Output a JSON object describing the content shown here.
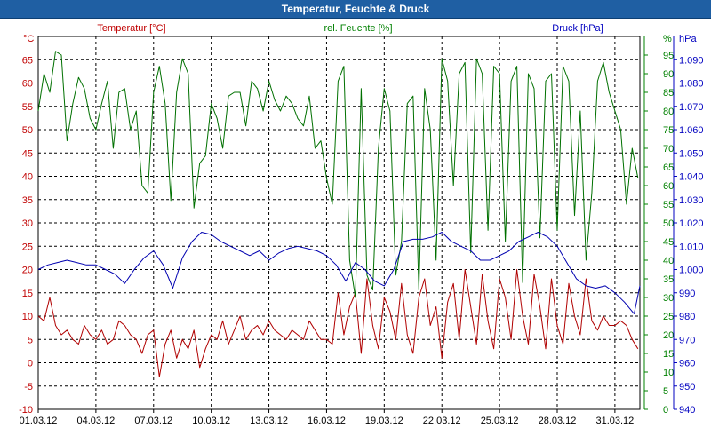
{
  "window": {
    "title": "Temperatur, Feuchte & Druck"
  },
  "chart_data": {
    "type": "line",
    "title": "Temperatur, Feuchte & Druck",
    "x": {
      "tick_labels": [
        "01.03.12",
        "04.03.12",
        "07.03.12",
        "10.03.12",
        "13.03.12",
        "16.03.12",
        "19.03.12",
        "22.03.12",
        "25.03.12",
        "28.03.12",
        "31.03.12"
      ],
      "tick_days": [
        0,
        3,
        6,
        9,
        12,
        15,
        18,
        21,
        24,
        27,
        30
      ],
      "range": [
        0,
        31.3
      ],
      "unit": "days"
    },
    "axes": {
      "temperature": {
        "label": "°C",
        "range": [
          -10,
          70
        ],
        "ticks": [
          -10,
          -5,
          0,
          5,
          10,
          15,
          20,
          25,
          30,
          35,
          40,
          45,
          50,
          55,
          60,
          65
        ],
        "color": "#c00000"
      },
      "humidity": {
        "label": "%",
        "range": [
          0,
          100
        ],
        "ticks": [
          0,
          5,
          10,
          15,
          20,
          25,
          30,
          35,
          40,
          45,
          50,
          55,
          60,
          65,
          70,
          75,
          80,
          85,
          90,
          95
        ],
        "color": "#008000"
      },
      "pressure": {
        "label": "hPa",
        "range": [
          940,
          1100
        ],
        "ticks": [
          "940",
          "950",
          "960",
          "970",
          "980",
          "990",
          "1.000",
          "1.010",
          "1.020",
          "1.030",
          "1.040",
          "1.050",
          "1.060",
          "1.070",
          "1.080",
          "1.090"
        ],
        "tick_values": [
          940,
          950,
          960,
          970,
          980,
          990,
          1000,
          1010,
          1020,
          1030,
          1040,
          1050,
          1060,
          1070,
          1080,
          1090
        ],
        "color": "#0000c0"
      }
    },
    "grid": true,
    "legend_placement": "top",
    "series": [
      {
        "name": "Temperatur [°C]",
        "axis": "temperature",
        "color": "#b00000",
        "x": [
          0,
          0.3,
          0.6,
          0.9,
          1.2,
          1.5,
          1.8,
          2.1,
          2.4,
          2.7,
          3.0,
          3.3,
          3.6,
          3.9,
          4.2,
          4.5,
          4.8,
          5.1,
          5.4,
          5.7,
          6.0,
          6.3,
          6.6,
          6.9,
          7.2,
          7.5,
          7.8,
          8.1,
          8.4,
          8.7,
          9.0,
          9.3,
          9.6,
          9.9,
          10.2,
          10.5,
          10.8,
          11.1,
          11.4,
          11.7,
          12.0,
          12.3,
          12.6,
          12.9,
          13.2,
          13.5,
          13.8,
          14.1,
          14.4,
          14.7,
          15.0,
          15.3,
          15.6,
          15.9,
          16.2,
          16.5,
          16.8,
          17.1,
          17.4,
          17.7,
          18.0,
          18.3,
          18.6,
          18.9,
          19.2,
          19.5,
          19.8,
          20.1,
          20.4,
          20.7,
          21.0,
          21.3,
          21.6,
          21.9,
          22.2,
          22.5,
          22.8,
          23.1,
          23.4,
          23.7,
          24.0,
          24.3,
          24.6,
          24.9,
          25.2,
          25.5,
          25.8,
          26.1,
          26.4,
          26.7,
          27.0,
          27.3,
          27.6,
          27.9,
          28.2,
          28.5,
          28.8,
          29.1,
          29.4,
          29.7,
          30.0,
          30.3,
          30.6,
          30.9,
          31.2
        ],
        "values": [
          10,
          9,
          14,
          8,
          6,
          7,
          5,
          4,
          8,
          6,
          5,
          7,
          4,
          5,
          9,
          8,
          6,
          5,
          2,
          6,
          7,
          -3,
          4,
          7,
          1,
          5,
          3,
          7,
          -1,
          3,
          6,
          5,
          9,
          4,
          7,
          10,
          5,
          7,
          8,
          6,
          9,
          7,
          6,
          5,
          7,
          6,
          5,
          9,
          7,
          5,
          5,
          4,
          15,
          6,
          12,
          15,
          2,
          18,
          8,
          3,
          14,
          11,
          5,
          17,
          6,
          2,
          14,
          18,
          8,
          12,
          1,
          13,
          17,
          5,
          20,
          12,
          4,
          19,
          9,
          3,
          18,
          14,
          5,
          20,
          10,
          4,
          19,
          12,
          3,
          18,
          8,
          4,
          17,
          10,
          6,
          18,
          9,
          7,
          10,
          8,
          8,
          9,
          8,
          5,
          3
        ]
      },
      {
        "name": "rel. Feuchte [%]",
        "axis": "humidity",
        "color": "#007000",
        "x": [
          0,
          0.3,
          0.6,
          0.9,
          1.2,
          1.5,
          1.8,
          2.1,
          2.4,
          2.7,
          3.0,
          3.3,
          3.6,
          3.9,
          4.2,
          4.5,
          4.8,
          5.1,
          5.4,
          5.7,
          6.0,
          6.3,
          6.6,
          6.9,
          7.2,
          7.5,
          7.8,
          8.1,
          8.4,
          8.7,
          9.0,
          9.3,
          9.6,
          9.9,
          10.2,
          10.5,
          10.8,
          11.1,
          11.4,
          11.7,
          12.0,
          12.3,
          12.6,
          12.9,
          13.2,
          13.5,
          13.8,
          14.1,
          14.4,
          14.7,
          15.0,
          15.3,
          15.6,
          15.9,
          16.2,
          16.5,
          16.8,
          17.1,
          17.4,
          17.7,
          18.0,
          18.3,
          18.6,
          18.9,
          19.2,
          19.5,
          19.8,
          20.1,
          20.4,
          20.7,
          21.0,
          21.3,
          21.6,
          21.9,
          22.2,
          22.5,
          22.8,
          23.1,
          23.4,
          23.7,
          24.0,
          24.3,
          24.6,
          24.9,
          25.2,
          25.5,
          25.8,
          26.1,
          26.4,
          26.7,
          27.0,
          27.3,
          27.6,
          27.9,
          28.2,
          28.5,
          28.8,
          29.1,
          29.4,
          29.7,
          30.0,
          30.3,
          30.6,
          30.9,
          31.2
        ],
        "values": [
          80,
          90,
          85,
          96,
          95,
          72,
          82,
          89,
          86,
          78,
          75,
          82,
          88,
          70,
          85,
          86,
          75,
          80,
          60,
          58,
          85,
          92,
          82,
          56,
          85,
          94,
          90,
          54,
          66,
          68,
          82,
          78,
          70,
          84,
          85,
          85,
          76,
          88,
          86,
          80,
          88,
          83,
          80,
          84,
          82,
          78,
          76,
          84,
          70,
          72,
          62,
          55,
          88,
          92,
          40,
          30,
          86,
          36,
          32,
          70,
          86,
          80,
          36,
          45,
          82,
          84,
          32,
          86,
          75,
          40,
          94,
          88,
          60,
          90,
          93,
          42,
          94,
          90,
          48,
          92,
          90,
          45,
          88,
          92,
          34,
          90,
          86,
          46,
          88,
          90,
          48,
          92,
          88,
          52,
          80,
          40,
          58,
          88,
          93,
          85,
          80,
          75,
          55,
          70,
          62
        ]
      },
      {
        "name": "Druck [hPa]",
        "axis": "pressure",
        "color": "#0000b0",
        "x": [
          0,
          0.5,
          1.0,
          1.5,
          2.0,
          2.5,
          3.0,
          3.5,
          4.0,
          4.5,
          5.0,
          5.5,
          6.0,
          6.5,
          7.0,
          7.5,
          8.0,
          8.5,
          9.0,
          9.5,
          10.0,
          10.5,
          11.0,
          11.5,
          12.0,
          12.5,
          13.0,
          13.5,
          14.0,
          14.5,
          15.0,
          15.5,
          16.0,
          16.5,
          17.0,
          17.5,
          18.0,
          18.5,
          19.0,
          19.5,
          20.0,
          20.5,
          21.0,
          21.5,
          22.0,
          22.5,
          23.0,
          23.5,
          24.0,
          24.5,
          25.0,
          25.5,
          26.0,
          26.5,
          27.0,
          27.5,
          28.0,
          28.5,
          29.0,
          29.5,
          30.0,
          30.5,
          31.0,
          31.3
        ],
        "values": [
          1000,
          1002,
          1003,
          1004,
          1003,
          1002,
          1002,
          1000,
          998,
          994,
          1000,
          1005,
          1008,
          1002,
          992,
          1005,
          1012,
          1016,
          1015,
          1012,
          1010,
          1008,
          1006,
          1008,
          1004,
          1007,
          1009,
          1010,
          1009,
          1008,
          1006,
          1002,
          995,
          1003,
          1000,
          995,
          993,
          1000,
          1012,
          1013,
          1013,
          1014,
          1016,
          1012,
          1010,
          1008,
          1004,
          1004,
          1006,
          1008,
          1012,
          1014,
          1016,
          1014,
          1010,
          1003,
          996,
          993,
          992,
          993,
          990,
          986,
          981,
          993
        ]
      }
    ]
  }
}
